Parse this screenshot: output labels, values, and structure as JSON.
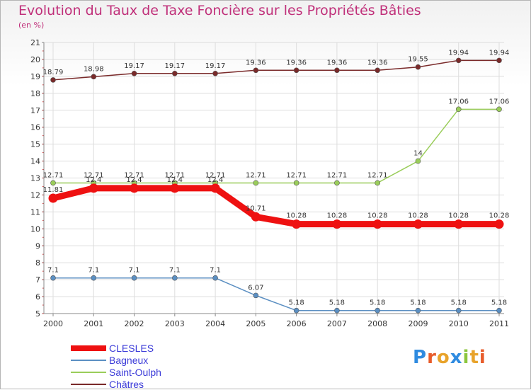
{
  "title": "Evolution du Taux de Taxe Foncière sur les Propriétés Bâties",
  "subtitle": "(en %)",
  "logo": {
    "text": "Proxiti",
    "letters": [
      {
        "ch": "P",
        "color": "#2f8be0"
      },
      {
        "ch": "r",
        "color": "#e85c2b"
      },
      {
        "ch": "o",
        "color": "#e8a32b"
      },
      {
        "ch": "x",
        "color": "#2f8be0"
      },
      {
        "ch": "i",
        "color": "#8cc63e"
      },
      {
        "ch": "t",
        "color": "#e8a32b"
      },
      {
        "ch": "i",
        "color": "#e85c2b"
      }
    ]
  },
  "chart_data": {
    "type": "line",
    "title": "Evolution du Taux de Taxe Foncière sur les Propriétés Bâties",
    "ylabel": "(en %)",
    "x": [
      "2000",
      "2001",
      "2002",
      "2003",
      "2004",
      "2005",
      "2006",
      "2007",
      "2008",
      "2009",
      "2010",
      "2011"
    ],
    "ylim": [
      5,
      21
    ],
    "yticks": [
      5,
      6,
      7,
      8,
      9,
      10,
      11,
      12,
      13,
      14,
      15,
      16,
      17,
      18,
      19,
      20,
      21
    ],
    "grid": true,
    "legend_position": "bottom-left",
    "series": [
      {
        "name": "Châtres",
        "color": "#7a2a2a",
        "labels": [
          "18.79",
          "18.98",
          "19.17",
          "19.17",
          "19.17",
          "19.36",
          "19.36",
          "19.36",
          "19.36",
          "19.55",
          "19.94",
          "19.94"
        ],
        "values": [
          18.79,
          18.98,
          19.17,
          19.17,
          19.17,
          19.36,
          19.36,
          19.36,
          19.36,
          19.55,
          19.94,
          19.94
        ]
      },
      {
        "name": "Saint-Oulph",
        "color": "#9acd5a",
        "labels": [
          "12.71",
          "12.71",
          "12.71",
          "12.71",
          "12.71",
          "12.71",
          "12.71",
          "12.71",
          "12.71",
          "14",
          "17.06",
          "17.06"
        ],
        "values": [
          12.71,
          12.71,
          12.71,
          12.71,
          12.71,
          12.71,
          12.71,
          12.71,
          12.71,
          14,
          17.06,
          17.06
        ]
      },
      {
        "name": "CLESLES",
        "color": "#ee1111",
        "labels": [
          "11.81",
          "12.4",
          "12.4",
          "12.4",
          "12.4",
          "10.71",
          "10.28",
          "10.28",
          "10.28",
          "10.28",
          "10.28",
          "10.28"
        ],
        "values": [
          11.81,
          12.4,
          12.4,
          12.4,
          12.4,
          10.71,
          10.28,
          10.28,
          10.28,
          10.28,
          10.28,
          10.28
        ]
      },
      {
        "name": "Bagneux",
        "color": "#5b8fc2",
        "labels": [
          "7.1",
          "7.1",
          "7.1",
          "7.1",
          "7.1",
          "6.07",
          "5.18",
          "5.18",
          "5.18",
          "5.18",
          "5.18",
          "5.18"
        ],
        "values": [
          7.1,
          7.1,
          7.1,
          7.1,
          7.1,
          6.07,
          5.18,
          5.18,
          5.18,
          5.18,
          5.18,
          5.18
        ]
      }
    ],
    "legend": [
      "CLESLES",
      "Bagneux",
      "Saint-Oulph",
      "Châtres"
    ]
  }
}
